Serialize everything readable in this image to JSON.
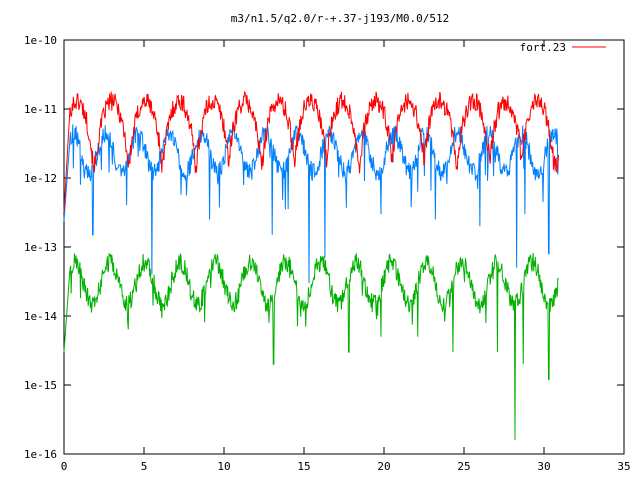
{
  "chart_data": {
    "type": "line",
    "title": "m3/n1.5/q2.0/r-+.37-j193/M0.0/512",
    "xlabel": "",
    "ylabel": "",
    "xlim": [
      0,
      35
    ],
    "ylim": [
      1e-16,
      1e-10
    ],
    "yscale": "log",
    "x_ticks": [
      0,
      5,
      10,
      15,
      20,
      25,
      30,
      35
    ],
    "x_tick_labels": [
      "0",
      "5",
      "10",
      "15",
      "20",
      "25",
      "30",
      "35"
    ],
    "y_ticks": [
      1e-16,
      1e-15,
      1e-14,
      1e-13,
      1e-12,
      1e-11,
      1e-10
    ],
    "y_tick_labels": [
      "1e-16",
      "1e-15",
      "1e-14",
      "1e-13",
      "1e-12",
      "1e-11",
      "1e-10"
    ],
    "grid": false,
    "legend_position": "top-right",
    "x_end": 30.9,
    "series": [
      {
        "name": "fort.23",
        "color": "#ff0000",
        "period": 2.0,
        "peaks": [
          0.8,
          3.0,
          5.1,
          7.2,
          9.3,
          11.3,
          13.4,
          15.4,
          17.4,
          19.5,
          21.5,
          23.5,
          25.6,
          27.6,
          29.6
        ],
        "peak_value": 1.3e-11,
        "trough_value": 1.6e-12
      },
      {
        "name": "",
        "color": "#0080ff",
        "period": 2.0,
        "peak_value": 4.5e-12,
        "trough_value": 1.2e-12,
        "dips": [
          {
            "x": 1.8,
            "y": 1.5e-13
          },
          {
            "x": 5.5,
            "y": 4e-14
          },
          {
            "x": 9.1,
            "y": 2.5e-13
          },
          {
            "x": 13.0,
            "y": 1.5e-13
          },
          {
            "x": 15.3,
            "y": 3e-14
          },
          {
            "x": 16.3,
            "y": 7e-14
          },
          {
            "x": 19.8,
            "y": 3e-13
          },
          {
            "x": 23.2,
            "y": 2.5e-13
          },
          {
            "x": 26.0,
            "y": 2e-13
          },
          {
            "x": 28.3,
            "y": 5e-14
          },
          {
            "x": 28.8,
            "y": 3e-13
          },
          {
            "x": 30.3,
            "y": 8e-14
          }
        ]
      },
      {
        "name": "",
        "color": "#00b000",
        "period": 2.2,
        "peak_value": 6e-14,
        "trough_value": 1.5e-14,
        "dips": [
          {
            "x": 10.5,
            "y": 1.2e-14
          },
          {
            "x": 12.8,
            "y": 8e-15
          },
          {
            "x": 13.1,
            "y": 2e-15
          },
          {
            "x": 15.1,
            "y": 7e-15
          },
          {
            "x": 17.8,
            "y": 3e-15
          },
          {
            "x": 19.8,
            "y": 5e-15
          },
          {
            "x": 22.1,
            "y": 5e-15
          },
          {
            "x": 24.3,
            "y": 3e-15
          },
          {
            "x": 27.1,
            "y": 3e-15
          },
          {
            "x": 28.2,
            "y": 1.6e-16
          },
          {
            "x": 28.7,
            "y": 2e-15
          },
          {
            "x": 30.3,
            "y": 1.2e-15
          }
        ]
      }
    ]
  }
}
